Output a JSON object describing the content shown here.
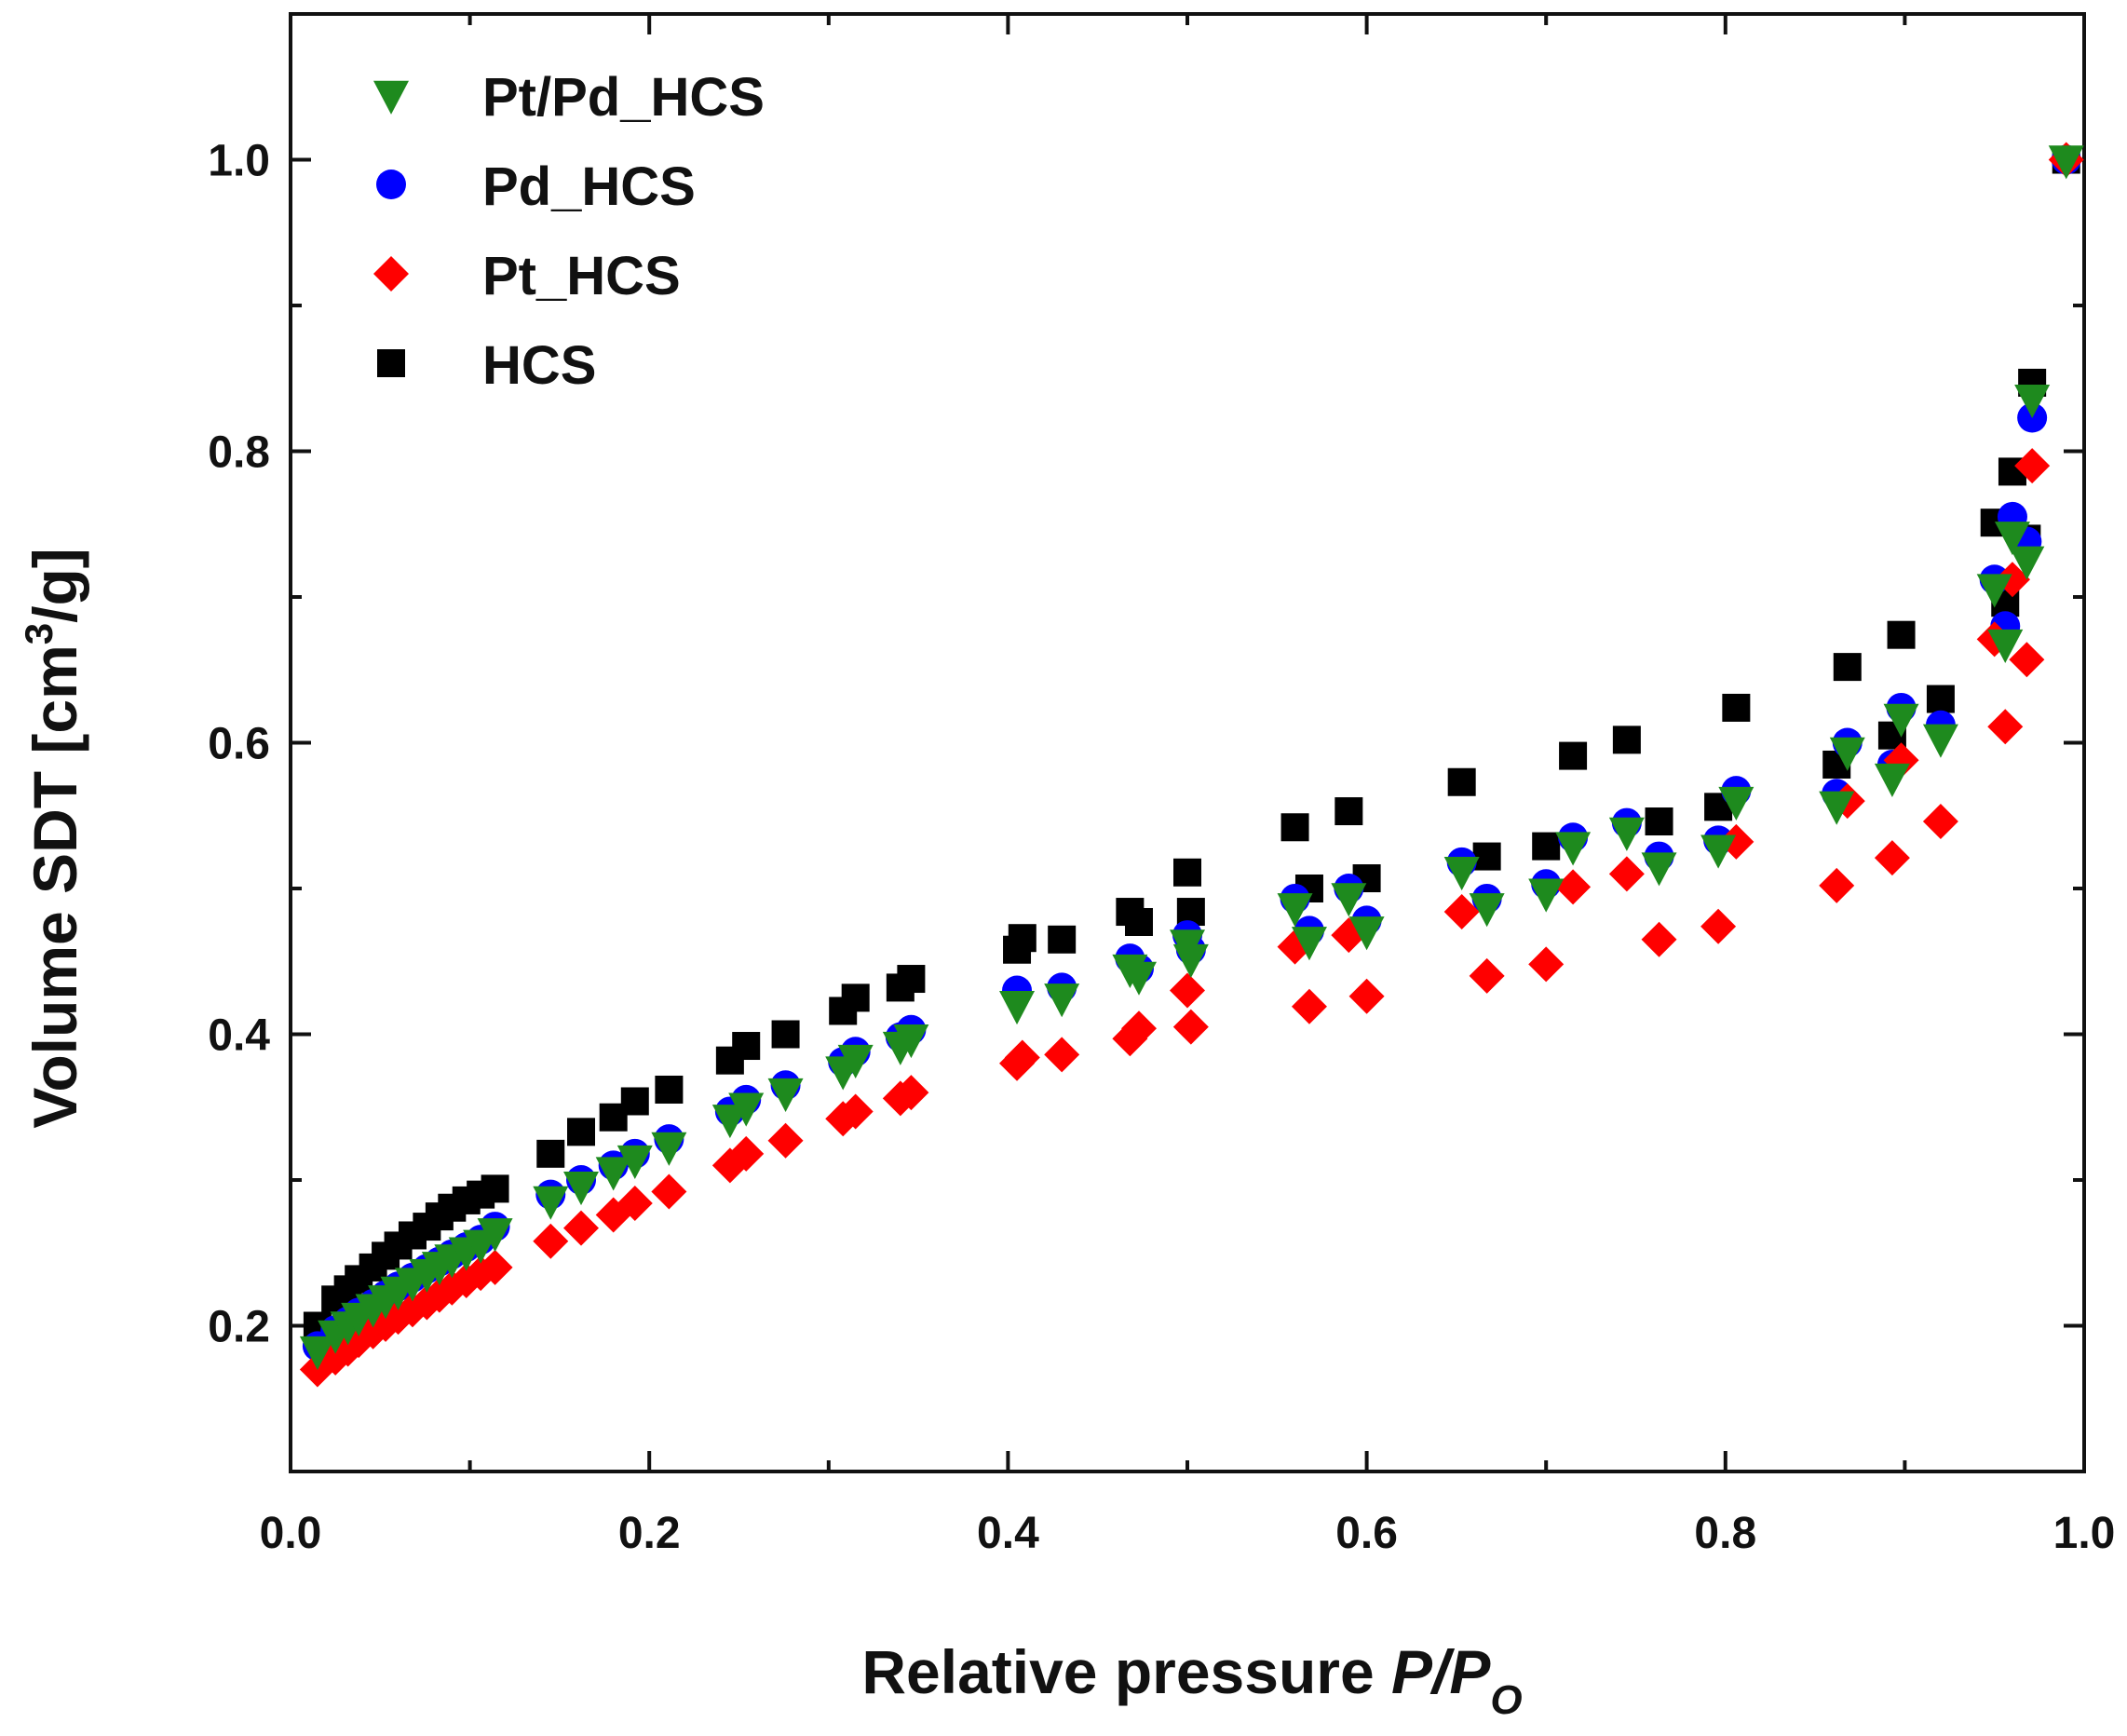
{
  "chart_data": {
    "type": "scatter",
    "xlabel": {
      "main": "Relative pressure ",
      "var": "P/P",
      "sub": "O"
    },
    "ylabel": {
      "main": "Volume SDT [cm",
      "sup": "3",
      "tail": "/g]"
    },
    "xlim": [
      0.0,
      1.0
    ],
    "ylim": [
      0.1,
      1.1
    ],
    "x_ticks": [
      0.0,
      0.2,
      0.4,
      0.6,
      0.8,
      1.0
    ],
    "x_tick_labels": [
      "0.0",
      "0.2",
      "0.4",
      "0.6",
      "0.8",
      "1.0"
    ],
    "y_ticks": [
      0.2,
      0.4,
      0.6,
      0.8,
      1.0
    ],
    "y_tick_labels": [
      "0.2",
      "0.4",
      "0.6",
      "0.8",
      "1.0"
    ],
    "grid": false,
    "legend_position": "top-left",
    "series": [
      {
        "name": "HCS",
        "marker": "square",
        "color": "#000000",
        "points": [
          [
            0.015,
            0.2
          ],
          [
            0.025,
            0.218
          ],
          [
            0.032,
            0.225
          ],
          [
            0.038,
            0.232
          ],
          [
            0.046,
            0.24
          ],
          [
            0.053,
            0.248
          ],
          [
            0.06,
            0.255
          ],
          [
            0.068,
            0.262
          ],
          [
            0.076,
            0.268
          ],
          [
            0.083,
            0.275
          ],
          [
            0.09,
            0.281
          ],
          [
            0.098,
            0.286
          ],
          [
            0.106,
            0.29
          ],
          [
            0.114,
            0.294
          ],
          [
            0.145,
            0.318
          ],
          [
            0.162,
            0.333
          ],
          [
            0.18,
            0.343
          ],
          [
            0.192,
            0.354
          ],
          [
            0.211,
            0.362
          ],
          [
            0.245,
            0.382
          ],
          [
            0.254,
            0.392
          ],
          [
            0.276,
            0.4
          ],
          [
            0.308,
            0.416
          ],
          [
            0.315,
            0.425
          ],
          [
            0.34,
            0.432
          ],
          [
            0.346,
            0.438
          ],
          [
            0.405,
            0.458
          ],
          [
            0.408,
            0.466
          ],
          [
            0.43,
            0.465
          ],
          [
            0.468,
            0.484
          ],
          [
            0.473,
            0.477
          ],
          [
            0.5,
            0.511
          ],
          [
            0.502,
            0.484
          ],
          [
            0.56,
            0.542
          ],
          [
            0.568,
            0.5
          ],
          [
            0.59,
            0.553
          ],
          [
            0.6,
            0.507
          ],
          [
            0.653,
            0.573
          ],
          [
            0.667,
            0.522
          ],
          [
            0.7,
            0.529
          ],
          [
            0.715,
            0.591
          ],
          [
            0.745,
            0.602
          ],
          [
            0.763,
            0.546
          ],
          [
            0.806,
            0.624
          ],
          [
            0.796,
            0.556
          ],
          [
            0.862,
            0.585
          ],
          [
            0.868,
            0.652
          ],
          [
            0.893,
            0.605
          ],
          [
            0.898,
            0.674
          ],
          [
            0.92,
            0.63
          ],
          [
            0.95,
            0.751
          ],
          [
            0.956,
            0.696
          ],
          [
            0.96,
            0.786
          ],
          [
            0.968,
            0.74
          ],
          [
            0.971,
            0.847
          ],
          [
            0.99,
            1.0
          ]
        ]
      },
      {
        "name": "Pd_HCS",
        "marker": "circle",
        "color": "#0000ff",
        "points": [
          [
            0.015,
            0.186
          ],
          [
            0.025,
            0.197
          ],
          [
            0.032,
            0.203
          ],
          [
            0.038,
            0.209
          ],
          [
            0.046,
            0.215
          ],
          [
            0.053,
            0.221
          ],
          [
            0.06,
            0.227
          ],
          [
            0.068,
            0.233
          ],
          [
            0.076,
            0.239
          ],
          [
            0.083,
            0.244
          ],
          [
            0.09,
            0.249
          ],
          [
            0.098,
            0.254
          ],
          [
            0.106,
            0.259
          ],
          [
            0.114,
            0.268
          ],
          [
            0.145,
            0.29
          ],
          [
            0.162,
            0.3
          ],
          [
            0.18,
            0.31
          ],
          [
            0.192,
            0.318
          ],
          [
            0.211,
            0.328
          ],
          [
            0.245,
            0.347
          ],
          [
            0.254,
            0.355
          ],
          [
            0.276,
            0.365
          ],
          [
            0.308,
            0.381
          ],
          [
            0.315,
            0.388
          ],
          [
            0.34,
            0.398
          ],
          [
            0.346,
            0.403
          ],
          [
            0.405,
            0.43
          ],
          [
            0.43,
            0.432
          ],
          [
            0.468,
            0.452
          ],
          [
            0.473,
            0.445
          ],
          [
            0.5,
            0.468
          ],
          [
            0.502,
            0.458
          ],
          [
            0.56,
            0.493
          ],
          [
            0.568,
            0.471
          ],
          [
            0.59,
            0.5
          ],
          [
            0.6,
            0.478
          ],
          [
            0.653,
            0.518
          ],
          [
            0.667,
            0.493
          ],
          [
            0.7,
            0.503
          ],
          [
            0.715,
            0.535
          ],
          [
            0.745,
            0.545
          ],
          [
            0.763,
            0.522
          ],
          [
            0.806,
            0.567
          ],
          [
            0.796,
            0.533
          ],
          [
            0.862,
            0.565
          ],
          [
            0.868,
            0.6
          ],
          [
            0.893,
            0.585
          ],
          [
            0.898,
            0.624
          ],
          [
            0.92,
            0.612
          ],
          [
            0.95,
            0.712
          ],
          [
            0.956,
            0.68
          ],
          [
            0.96,
            0.755
          ],
          [
            0.968,
            0.738
          ],
          [
            0.971,
            0.823
          ],
          [
            0.99,
            1.0
          ]
        ]
      },
      {
        "name": "Pt_HCS",
        "marker": "diamond",
        "color": "#ff0000",
        "points": [
          [
            0.015,
            0.17
          ],
          [
            0.025,
            0.178
          ],
          [
            0.032,
            0.184
          ],
          [
            0.038,
            0.19
          ],
          [
            0.046,
            0.196
          ],
          [
            0.053,
            0.201
          ],
          [
            0.06,
            0.206
          ],
          [
            0.068,
            0.211
          ],
          [
            0.076,
            0.216
          ],
          [
            0.083,
            0.221
          ],
          [
            0.09,
            0.226
          ],
          [
            0.098,
            0.231
          ],
          [
            0.106,
            0.236
          ],
          [
            0.114,
            0.24
          ],
          [
            0.145,
            0.258
          ],
          [
            0.162,
            0.267
          ],
          [
            0.18,
            0.276
          ],
          [
            0.192,
            0.284
          ],
          [
            0.211,
            0.292
          ],
          [
            0.245,
            0.31
          ],
          [
            0.254,
            0.318
          ],
          [
            0.276,
            0.327
          ],
          [
            0.308,
            0.342
          ],
          [
            0.315,
            0.347
          ],
          [
            0.34,
            0.356
          ],
          [
            0.346,
            0.36
          ],
          [
            0.405,
            0.38
          ],
          [
            0.408,
            0.384
          ],
          [
            0.43,
            0.386
          ],
          [
            0.468,
            0.397
          ],
          [
            0.473,
            0.404
          ],
          [
            0.5,
            0.43
          ],
          [
            0.502,
            0.405
          ],
          [
            0.56,
            0.46
          ],
          [
            0.568,
            0.419
          ],
          [
            0.59,
            0.468
          ],
          [
            0.6,
            0.426
          ],
          [
            0.653,
            0.484
          ],
          [
            0.667,
            0.44
          ],
          [
            0.7,
            0.448
          ],
          [
            0.715,
            0.501
          ],
          [
            0.745,
            0.51
          ],
          [
            0.763,
            0.465
          ],
          [
            0.806,
            0.532
          ],
          [
            0.796,
            0.474
          ],
          [
            0.862,
            0.502
          ],
          [
            0.868,
            0.56
          ],
          [
            0.893,
            0.521
          ],
          [
            0.898,
            0.588
          ],
          [
            0.92,
            0.546
          ],
          [
            0.95,
            0.671
          ],
          [
            0.956,
            0.611
          ],
          [
            0.96,
            0.712
          ],
          [
            0.968,
            0.657
          ],
          [
            0.971,
            0.79
          ],
          [
            0.99,
            1.0
          ]
        ]
      },
      {
        "name": "Pt/Pd_HCS",
        "marker": "triangle-down",
        "color": "#1e8a1e",
        "points": [
          [
            0.015,
            0.183
          ],
          [
            0.025,
            0.194
          ],
          [
            0.032,
            0.2
          ],
          [
            0.038,
            0.206
          ],
          [
            0.046,
            0.212
          ],
          [
            0.053,
            0.218
          ],
          [
            0.06,
            0.224
          ],
          [
            0.068,
            0.23
          ],
          [
            0.076,
            0.236
          ],
          [
            0.083,
            0.241
          ],
          [
            0.09,
            0.246
          ],
          [
            0.098,
            0.251
          ],
          [
            0.106,
            0.256
          ],
          [
            0.114,
            0.264
          ],
          [
            0.145,
            0.286
          ],
          [
            0.162,
            0.296
          ],
          [
            0.18,
            0.306
          ],
          [
            0.192,
            0.314
          ],
          [
            0.211,
            0.323
          ],
          [
            0.245,
            0.342
          ],
          [
            0.254,
            0.35
          ],
          [
            0.276,
            0.36
          ],
          [
            0.308,
            0.375
          ],
          [
            0.315,
            0.383
          ],
          [
            0.34,
            0.392
          ],
          [
            0.346,
            0.397
          ],
          [
            0.405,
            0.42
          ],
          [
            0.43,
            0.425
          ],
          [
            0.468,
            0.445
          ],
          [
            0.473,
            0.44
          ],
          [
            0.5,
            0.462
          ],
          [
            0.502,
            0.452
          ],
          [
            0.56,
            0.487
          ],
          [
            0.568,
            0.464
          ],
          [
            0.59,
            0.494
          ],
          [
            0.6,
            0.471
          ],
          [
            0.653,
            0.512
          ],
          [
            0.667,
            0.487
          ],
          [
            0.7,
            0.497
          ],
          [
            0.715,
            0.529
          ],
          [
            0.745,
            0.539
          ],
          [
            0.763,
            0.515
          ],
          [
            0.806,
            0.56
          ],
          [
            0.796,
            0.527
          ],
          [
            0.862,
            0.557
          ],
          [
            0.868,
            0.594
          ],
          [
            0.893,
            0.576
          ],
          [
            0.898,
            0.617
          ],
          [
            0.92,
            0.603
          ],
          [
            0.95,
            0.706
          ],
          [
            0.956,
            0.668
          ],
          [
            0.96,
            0.742
          ],
          [
            0.968,
            0.725
          ],
          [
            0.971,
            0.836
          ],
          [
            0.99,
            1.0
          ]
        ]
      }
    ],
    "legend_order": [
      "Pt/Pd_HCS",
      "Pd_HCS",
      "Pt_HCS",
      "HCS"
    ]
  }
}
